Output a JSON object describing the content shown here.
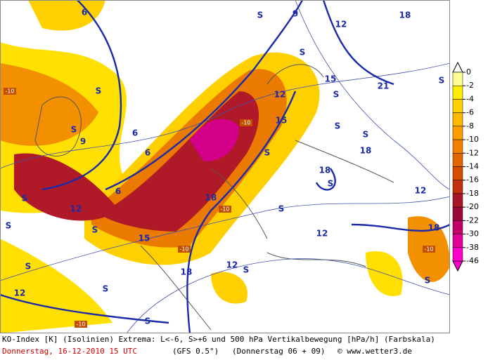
{
  "map": {
    "labels": [
      "S",
      "S",
      "S",
      "S",
      "S",
      "S",
      "S",
      "S",
      "S",
      "S",
      "S",
      "S",
      "S",
      "S",
      "S",
      "S",
      "S",
      "S",
      "S",
      "6",
      "6",
      "6",
      "6",
      "9",
      "9",
      "12",
      "12",
      "12",
      "12",
      "12",
      "12",
      "12",
      "15",
      "15",
      "15",
      "18",
      "18",
      "18",
      "18",
      "18",
      "18",
      "21",
      "-10",
      "-10",
      "-10",
      "-10",
      "-10",
      "-10"
    ]
  },
  "colorbar": {
    "ticks": [
      0,
      -2,
      -4,
      -6,
      -8,
      -10,
      -12,
      -14,
      -16,
      -18,
      -20,
      -22,
      -30,
      -38,
      -46
    ],
    "colors": [
      "#ffff90",
      "#ffee00",
      "#ffd200",
      "#ffb800",
      "#ff9c00",
      "#f28000",
      "#e46600",
      "#d44c00",
      "#c23010",
      "#a81428",
      "#9a0838",
      "#c00068",
      "#e0009a",
      "#ff00cc"
    ]
  },
  "footer": {
    "line1": "KO-Index [K] (Isolinien) Extrema: L<-6, S>+6 und 500 hPa Vertikalbewegung [hPa/h] (Farbskala)",
    "date": "Donnerstag, 16-12-2010  15 UTC",
    "model": "(GFS 0.5°)",
    "run": "(Donnerstag 06 + 09)",
    "credit": "© www.wetter3.de"
  }
}
